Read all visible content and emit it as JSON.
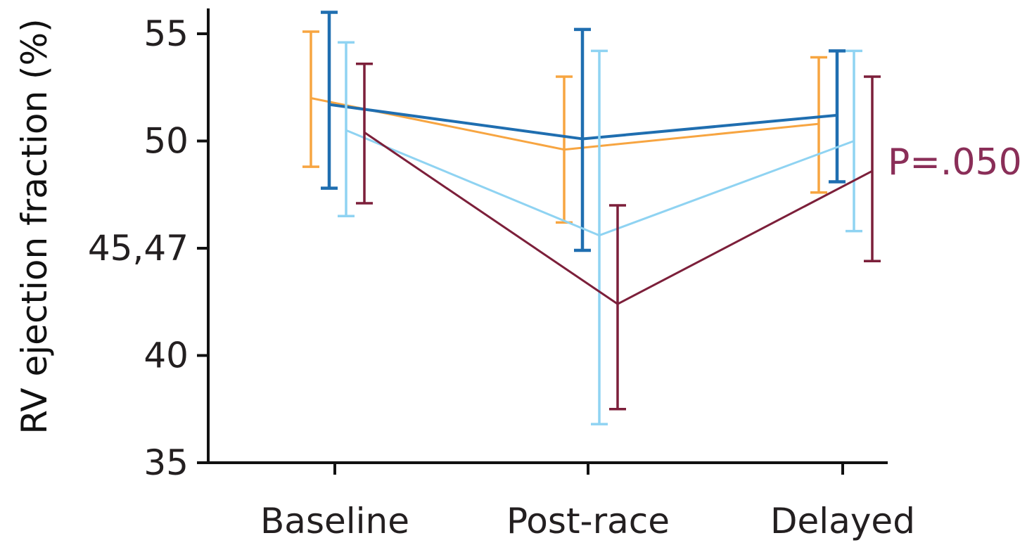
{
  "chart_data": {
    "type": "line",
    "title": "",
    "xlabel": "",
    "ylabel": "RV ejection fraction (%)",
    "categories": [
      "Baseline",
      "Post-race",
      "Delayed"
    ],
    "yticks": [
      {
        "value": 55,
        "label": "55"
      },
      {
        "value": 50,
        "label": "50"
      },
      {
        "value": 45,
        "label": "45,47"
      },
      {
        "value": 40,
        "label": "40"
      },
      {
        "value": 35,
        "label": "35"
      }
    ],
    "ylim": [
      35,
      56
    ],
    "grid": false,
    "legend": "none",
    "annotations": [
      {
        "text": "P=.050",
        "series_index": 3,
        "category_index": 2
      }
    ],
    "series": [
      {
        "color": "#f7a541",
        "stroke_width": 3.5,
        "values": [
          52.0,
          49.6,
          50.8
        ],
        "err_low": [
          48.8,
          46.2,
          47.6
        ],
        "err_high": [
          55.1,
          53.0,
          53.9
        ]
      },
      {
        "color": "#1f6eb0",
        "stroke_width": 4.5,
        "values": [
          51.7,
          50.1,
          51.2
        ],
        "err_low": [
          47.8,
          44.9,
          48.1
        ],
        "err_high": [
          56.0,
          55.2,
          54.2
        ]
      },
      {
        "color": "#8fd3f2",
        "stroke_width": 3.5,
        "values": [
          50.5,
          45.6,
          50.0
        ],
        "err_low": [
          46.5,
          36.8,
          45.8
        ],
        "err_high": [
          54.6,
          54.2,
          54.2
        ]
      },
      {
        "color": "#7c1f3a",
        "stroke_width": 3.5,
        "values": [
          50.4,
          42.4,
          48.6
        ],
        "err_low": [
          47.1,
          37.5,
          44.4
        ],
        "err_high": [
          53.6,
          47.0,
          53.0
        ]
      }
    ]
  }
}
